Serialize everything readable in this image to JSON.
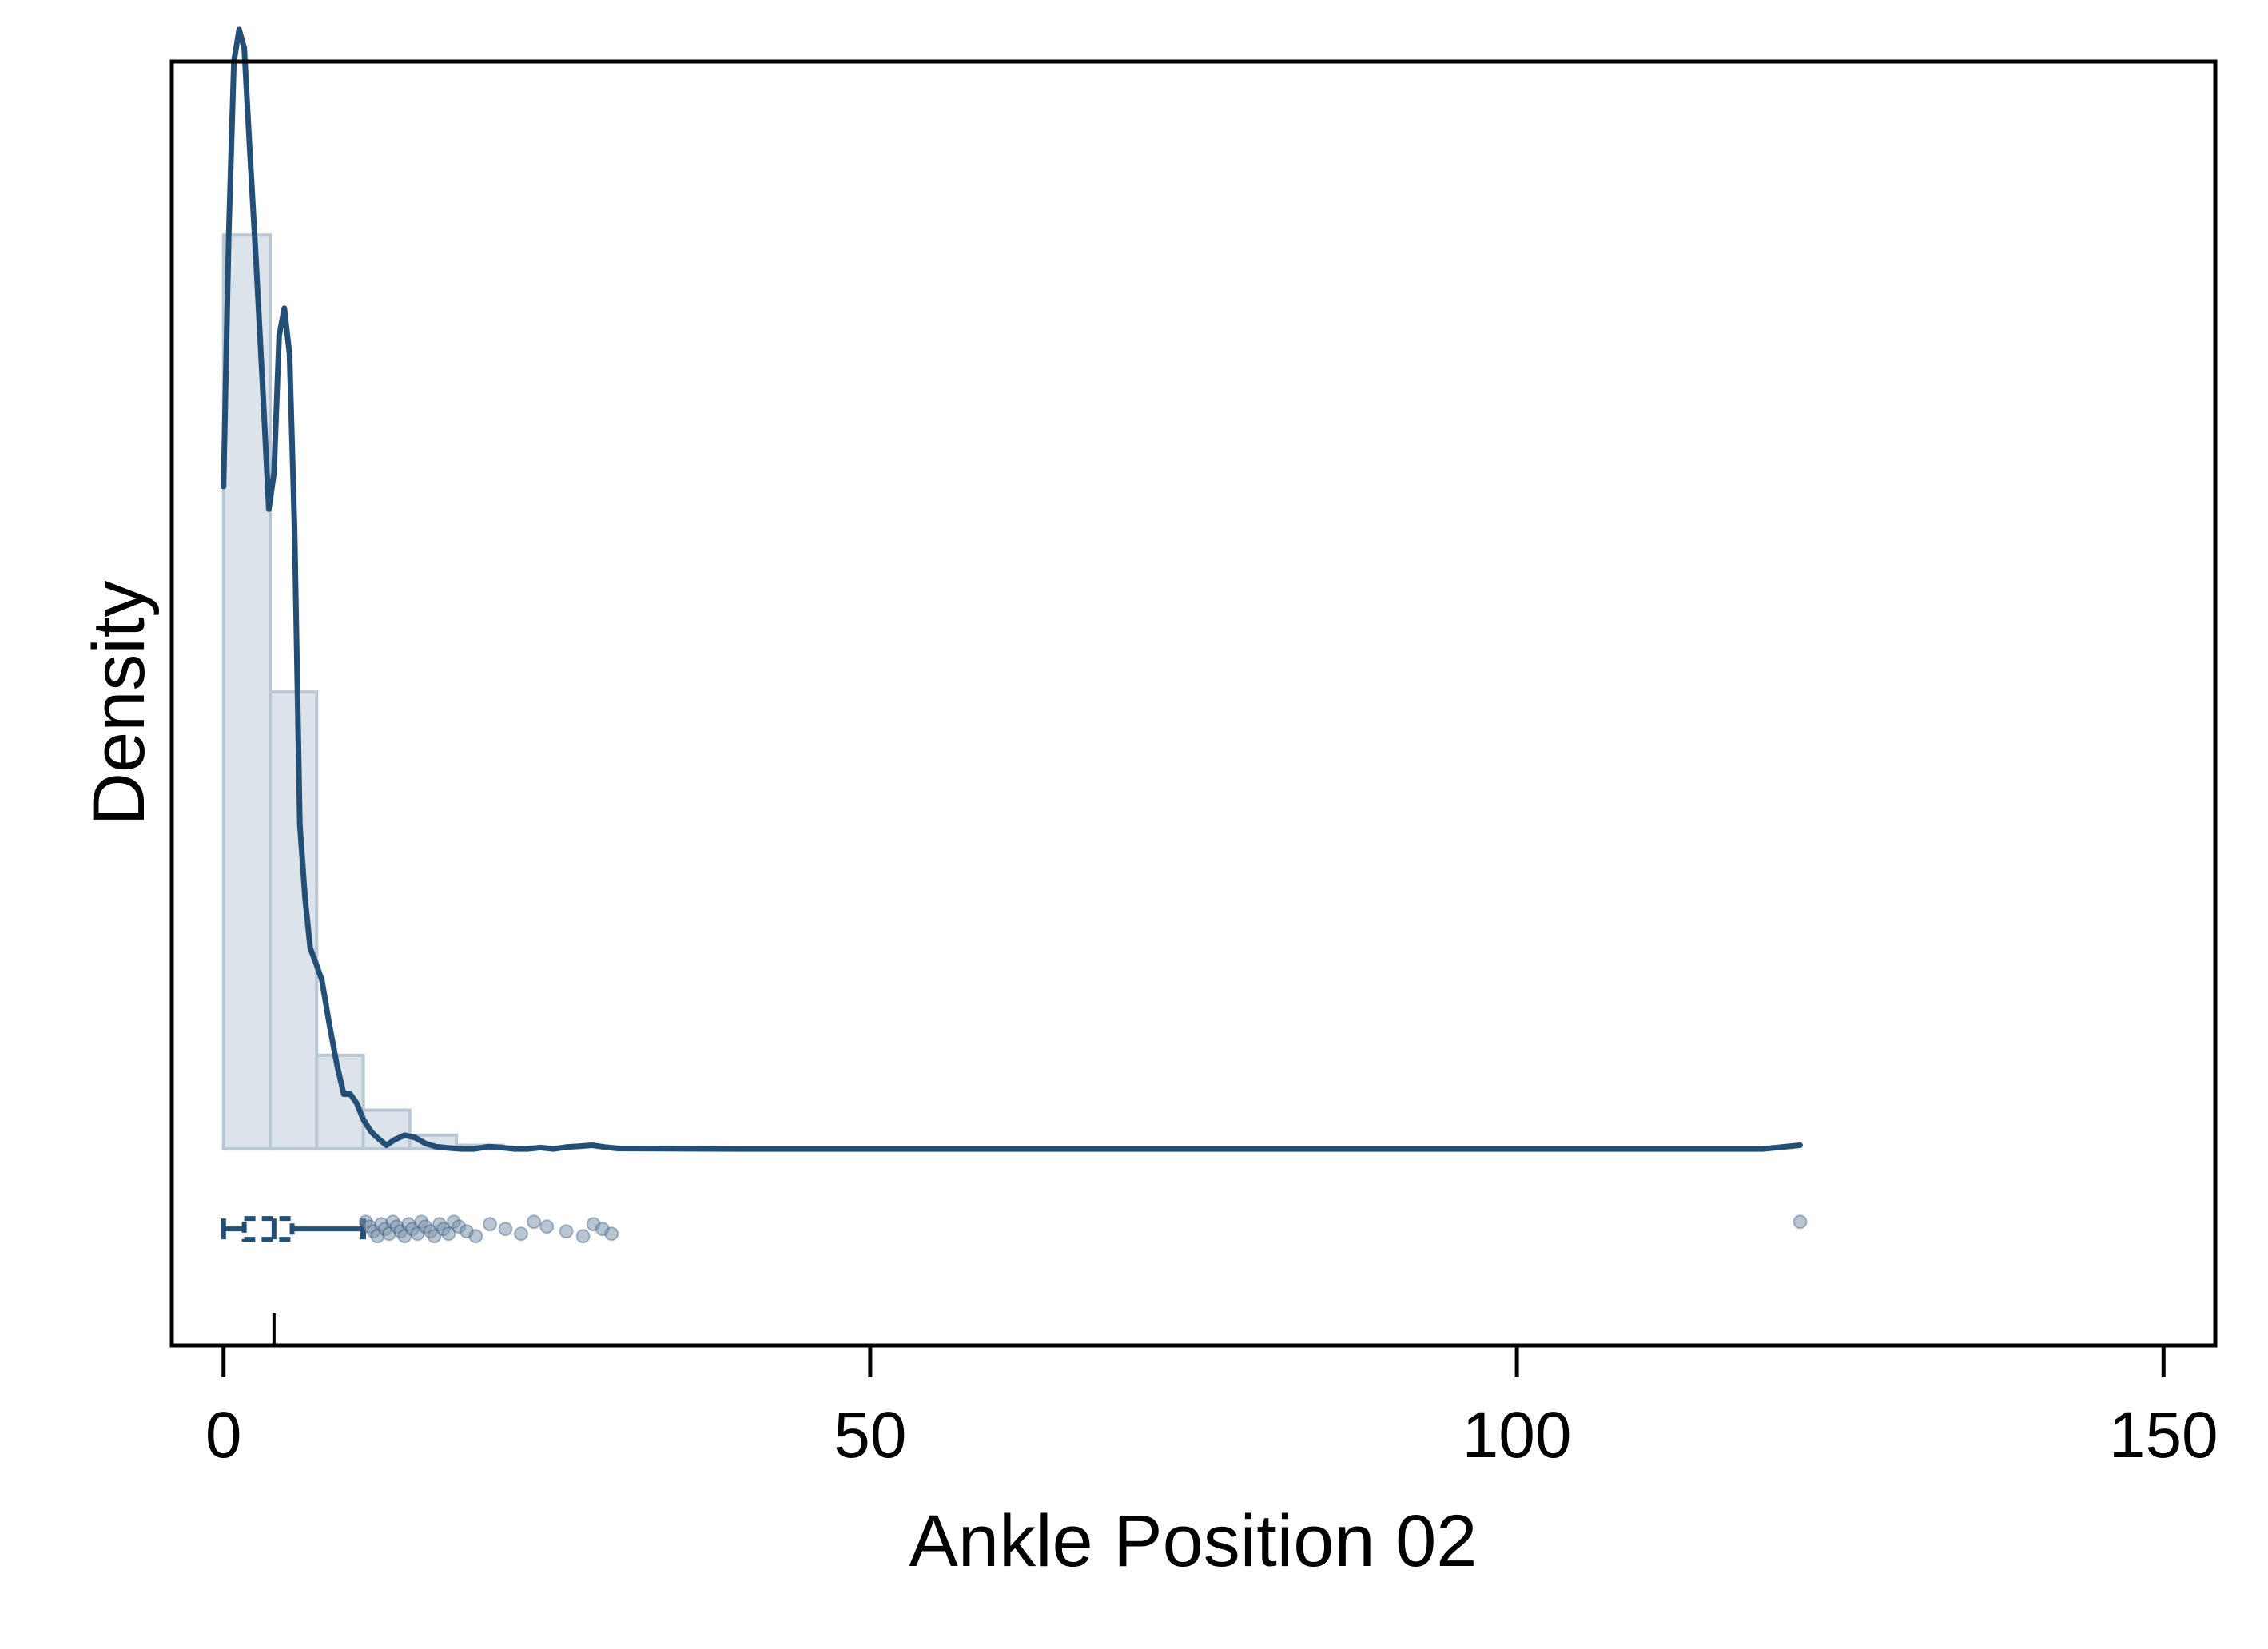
{
  "chart_data": {
    "type": "histogram",
    "xlabel": "Ankle Position 02",
    "ylabel": "Density",
    "xlim": [
      -4,
      154
    ],
    "ylim": [
      -0.043,
      0.238
    ],
    "x_ticks": [
      0,
      50,
      100,
      150
    ],
    "y_ticks_shown": false,
    "grid": false,
    "colors": {
      "bar_fill": "#dce3ea",
      "bar_stroke": "#b9c6d3",
      "line": "#234e76",
      "outlier": "#7f95ab"
    },
    "histogram": {
      "bin_width": 3.6,
      "bins": [
        {
          "start": 0.0,
          "end": 3.6,
          "density": 0.2
        },
        {
          "start": 3.6,
          "end": 7.2,
          "density": 0.1
        },
        {
          "start": 7.2,
          "end": 10.8,
          "density": 0.0205
        },
        {
          "start": 10.8,
          "end": 14.4,
          "density": 0.0085
        },
        {
          "start": 14.4,
          "end": 18.0,
          "density": 0.003
        },
        {
          "start": 18.0,
          "end": 21.6,
          "density": 0.0008
        }
      ]
    },
    "kde": {
      "name": "kernel density",
      "x": [
        0,
        0.4,
        0.8,
        1.2,
        1.6,
        2.0,
        2.5,
        3.0,
        3.5,
        3.9,
        4.3,
        4.7,
        5.1,
        5.5,
        5.9,
        6.3,
        6.7,
        7.1,
        7.6,
        8.2,
        8.8,
        9.3,
        9.8,
        10.3,
        10.8,
        11.4,
        12.0,
        12.6,
        13.2,
        14.0,
        14.8,
        15.6,
        16.4,
        17.4,
        18.4,
        19.4,
        20.5,
        21.5,
        22.5,
        23.5,
        24.5,
        25.5,
        26.5,
        27.5,
        28.5,
        29.5,
        30.5,
        40,
        60,
        80,
        100,
        110,
        119,
        121.9
      ],
      "y": [
        0.145,
        0.2,
        0.238,
        0.245,
        0.241,
        0.22,
        0.195,
        0.168,
        0.14,
        0.148,
        0.178,
        0.184,
        0.174,
        0.135,
        0.071,
        0.055,
        0.044,
        0.041,
        0.037,
        0.027,
        0.018,
        0.012,
        0.012,
        0.01,
        0.0065,
        0.0038,
        0.0022,
        0.0008,
        0.002,
        0.003,
        0.0025,
        0.0012,
        0.0005,
        0.0002,
        0.0,
        0.0,
        0.0005,
        0.0003,
        0.0,
        0.0,
        0.0003,
        0.0,
        0.0004,
        0.0006,
        0.0008,
        0.0004,
        0.0001,
        0.0,
        0.0,
        0.0,
        0.0,
        0.0,
        0.0,
        0.0008
      ]
    },
    "boxplot": {
      "min": 0,
      "q1": 1.6,
      "median": 3.9,
      "q3": 5.3,
      "whisker_high": 10.8,
      "outliers": [
        11.0,
        11.3,
        11.6,
        11.9,
        12.2,
        12.5,
        12.8,
        13.1,
        13.4,
        13.7,
        14.0,
        14.3,
        14.6,
        15.0,
        15.3,
        15.6,
        16.0,
        16.3,
        16.7,
        17.0,
        17.4,
        17.8,
        18.2,
        18.8,
        19.5,
        20.6,
        21.8,
        23.0,
        24.0,
        25.0,
        26.5,
        27.8,
        28.6,
        29.3,
        30.0,
        121.9
      ]
    },
    "rug_marker": 3.9
  }
}
